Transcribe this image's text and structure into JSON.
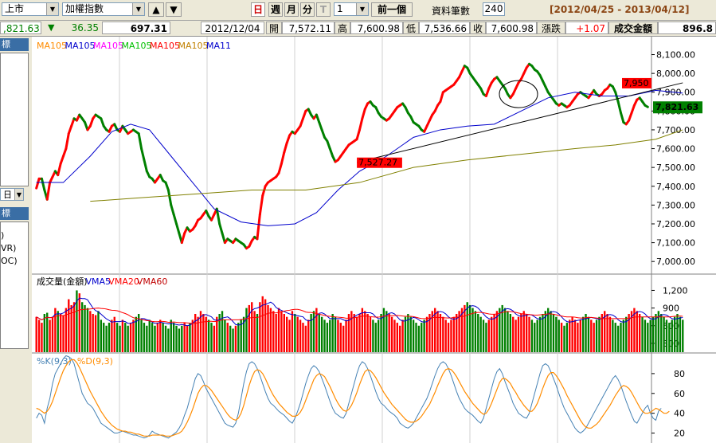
{
  "toolbar": {
    "market": "上市",
    "index": "加權指數",
    "up_arrow": "▲",
    "down_arrow": "▼",
    "day_label": "日",
    "week_label": "週",
    "month_label": "月",
    "minute_label": "分",
    "tick_label": "T",
    "multiplier": "1",
    "prev_button": "前一個",
    "records_label": "資料筆數",
    "records_value": "240",
    "date_range": "[2012/04/25 - 2013/04/12]"
  },
  "infobar": {
    "last_price": ",821.63",
    "change_arrow": "▼",
    "change": "36.35",
    "volume_value": "697.31",
    "date": "2012/12/04",
    "open_label": "開",
    "open": "7,572.11",
    "high_label": "高",
    "high": "7,600.98",
    "low_label": "低",
    "low": "7,536.66",
    "close_label": "收",
    "close": "7,600.98",
    "change_label": "漲跌",
    "day_change": "+1.07",
    "amount_label": "成交金額",
    "amount": "896.8"
  },
  "left_panel": {
    "tab1": "標",
    "select_value": "日",
    "tab2": "標",
    "items": [
      ")",
      "VR)",
      "OC)"
    ]
  },
  "colors": {
    "up": "#ff0000",
    "down": "#008000",
    "ma_short": "#0000cc",
    "ma_long": "#808000",
    "k_line": "#4682b4",
    "d_line": "#ff8c00"
  },
  "chart_data": [
    {
      "type": "line",
      "panel": "price",
      "legend": [
        {
          "text": "MA105",
          "color": "#ff8c00"
        },
        {
          "text": "MA105",
          "color": "#0000cc"
        },
        {
          "text": "MA105",
          "color": "#ff00ff"
        },
        {
          "text": "MA105",
          "color": "#00c000"
        },
        {
          "text": "MA105",
          "color": "#ff0000"
        },
        {
          "text": "MA105",
          "color": "#c08000"
        },
        {
          "text": "MA11",
          "color": "#0000cc"
        }
      ],
      "ylim": [
        6950,
        8170
      ],
      "yticks": [
        "8,100.00",
        "8,000.00",
        "7,900.00",
        "7,800.00",
        "7,700.00",
        "7,600.00",
        "7,500.00",
        "7,400.00",
        "7,300.00",
        "7,200.00",
        "7,100.00",
        "7,000.00"
      ],
      "ytick_values": [
        8100,
        8000,
        7900,
        7800,
        7700,
        7600,
        7500,
        7400,
        7300,
        7200,
        7100,
        7000
      ],
      "close": [
        7390,
        7440,
        7440,
        7380,
        7330,
        7420,
        7450,
        7480,
        7460,
        7520,
        7560,
        7600,
        7680,
        7720,
        7760,
        7750,
        7780,
        7760,
        7740,
        7700,
        7720,
        7760,
        7780,
        7770,
        7760,
        7720,
        7700,
        7690,
        7720,
        7730,
        7700,
        7690,
        7720,
        7700,
        7680,
        7690,
        7700,
        7690,
        7680,
        7600,
        7540,
        7480,
        7450,
        7440,
        7420,
        7440,
        7460,
        7430,
        7420,
        7380,
        7300,
        7250,
        7200,
        7150,
        7100,
        7150,
        7180,
        7160,
        7170,
        7190,
        7220,
        7230,
        7250,
        7270,
        7240,
        7220,
        7250,
        7280,
        7200,
        7150,
        7100,
        7120,
        7110,
        7100,
        7120,
        7110,
        7100,
        7090,
        7070,
        7080,
        7110,
        7130,
        7120,
        7250,
        7350,
        7400,
        7420,
        7430,
        7440,
        7450,
        7470,
        7520,
        7580,
        7630,
        7670,
        7690,
        7680,
        7700,
        7720,
        7760,
        7800,
        7810,
        7780,
        7760,
        7780,
        7740,
        7700,
        7660,
        7640,
        7600,
        7560,
        7530,
        7540,
        7560,
        7580,
        7600,
        7620,
        7630,
        7640,
        7650,
        7700,
        7760,
        7810,
        7840,
        7850,
        7830,
        7820,
        7790,
        7770,
        7760,
        7750,
        7760,
        7780,
        7800,
        7820,
        7830,
        7840,
        7820,
        7790,
        7770,
        7740,
        7730,
        7720,
        7700,
        7690,
        7720,
        7750,
        7780,
        7800,
        7830,
        7850,
        7900,
        7910,
        7920,
        7930,
        7940,
        7960,
        7980,
        8010,
        8040,
        8030,
        8000,
        7980,
        7960,
        7940,
        7920,
        7890,
        7880,
        7920,
        7950,
        7970,
        7980,
        7960,
        7940,
        7920,
        7890,
        7870,
        7890,
        7920,
        7950,
        7970,
        8000,
        8030,
        8050,
        8040,
        8020,
        8010,
        7990,
        7960,
        7930,
        7900,
        7880,
        7860,
        7840,
        7830,
        7840,
        7830,
        7820,
        7830,
        7850,
        7870,
        7890,
        7900,
        7890,
        7880,
        7870,
        7890,
        7910,
        7890,
        7880,
        7890,
        7910,
        7920,
        7940,
        7930,
        7900,
        7850,
        7790,
        7740,
        7730,
        7750,
        7790,
        7830,
        7860,
        7870,
        7850,
        7830,
        7821.63
      ],
      "ma_short_points": [
        [
          0,
          7420
        ],
        [
          10,
          7420
        ],
        [
          20,
          7560
        ],
        [
          28,
          7690
        ],
        [
          35,
          7730
        ],
        [
          42,
          7700
        ],
        [
          50,
          7560
        ],
        [
          58,
          7420
        ],
        [
          66,
          7280
        ],
        [
          76,
          7210
        ],
        [
          86,
          7190
        ],
        [
          96,
          7200
        ],
        [
          104,
          7260
        ],
        [
          112,
          7380
        ],
        [
          120,
          7480
        ],
        [
          130,
          7560
        ],
        [
          140,
          7660
        ],
        [
          150,
          7700
        ],
        [
          160,
          7720
        ],
        [
          170,
          7730
        ],
        [
          180,
          7800
        ],
        [
          190,
          7870
        ],
        [
          200,
          7900
        ],
        [
          210,
          7880
        ],
        [
          220,
          7880
        ],
        [
          230,
          7910
        ],
        [
          240,
          7895
        ]
      ],
      "ma_long_points": [
        [
          20,
          7320
        ],
        [
          40,
          7340
        ],
        [
          60,
          7360
        ],
        [
          80,
          7380
        ],
        [
          100,
          7380
        ],
        [
          120,
          7420
        ],
        [
          140,
          7500
        ],
        [
          160,
          7540
        ],
        [
          180,
          7570
        ],
        [
          200,
          7600
        ],
        [
          215,
          7620
        ],
        [
          230,
          7650
        ],
        [
          240,
          7700
        ]
      ],
      "trendline": {
        "from": [
          119,
          7527.27
        ],
        "to": [
          240,
          7950
        ]
      },
      "ellipse_center": [
        179,
        7890
      ],
      "annotations": [
        {
          "text": "7,527.27",
          "x": 119,
          "y": 7527.27,
          "value": 7527.27
        },
        {
          "text": "7,950",
          "x": 240,
          "y": 7950,
          "value": 7950
        }
      ],
      "last_label": "7,821.63",
      "last_value": 7821.63
    },
    {
      "type": "bar",
      "panel": "volume",
      "legend": [
        {
          "text": "成交量(金額)",
          "color": "#000000"
        },
        {
          "text": "VMA5",
          "color": "#0000cc"
        },
        {
          "text": "VMA20",
          "color": "#ff0000"
        },
        {
          "text": "VMA60",
          "color": "#c00000"
        }
      ],
      "ylim": [
        150,
        1450
      ],
      "yticks": [
        "1,200",
        "900",
        "600",
        "300"
      ],
      "ytick_values": [
        1200,
        900,
        600,
        300
      ],
      "values": [
        750,
        700,
        650,
        800,
        820,
        700,
        750,
        900,
        850,
        800,
        780,
        900,
        1050,
        950,
        1000,
        1200,
        1150,
        1000,
        950,
        900,
        850,
        800,
        780,
        850,
        700,
        650,
        600,
        650,
        700,
        750,
        650,
        600,
        700,
        650,
        600,
        650,
        700,
        750,
        800,
        700,
        650,
        600,
        700,
        650,
        600,
        650,
        700,
        650,
        600,
        550,
        700,
        650,
        600,
        550,
        600,
        650,
        600,
        650,
        700,
        800,
        750,
        850,
        800,
        750,
        700,
        650,
        600,
        750,
        800,
        850,
        700,
        650,
        600,
        550,
        600,
        650,
        700,
        750,
        900,
        950,
        1000,
        850,
        800,
        1000,
        1100,
        1050,
        950,
        900,
        850,
        800,
        900,
        850,
        800,
        750,
        700,
        850,
        800,
        750,
        700,
        650,
        600,
        700,
        800,
        850,
        900,
        800,
        750,
        700,
        650,
        700,
        800,
        750,
        700,
        650,
        600,
        700,
        800,
        850,
        800,
        750,
        800,
        900,
        850,
        800,
        750,
        700,
        650,
        700,
        800,
        900,
        850,
        800,
        750,
        700,
        650,
        600,
        700,
        750,
        800,
        750,
        700,
        650,
        600,
        650,
        700,
        750,
        800,
        850,
        900,
        850,
        800,
        750,
        700,
        650,
        700,
        750,
        800,
        850,
        900,
        950,
        1000,
        950,
        900,
        850,
        800,
        750,
        700,
        650,
        700,
        750,
        800,
        850,
        900,
        950,
        900,
        850,
        800,
        750,
        700,
        750,
        800,
        850,
        800,
        750,
        700,
        650,
        700,
        750,
        800,
        850,
        900,
        850,
        800,
        750,
        700,
        650,
        600,
        650,
        700,
        750,
        700,
        650,
        700,
        750,
        800,
        750,
        700,
        650,
        700,
        750,
        800,
        850,
        800,
        750,
        700,
        650,
        600,
        650,
        700,
        750,
        800,
        850,
        900,
        850,
        800,
        750,
        700,
        650,
        700,
        750,
        800,
        850,
        800,
        750,
        700,
        650,
        700,
        750,
        800,
        750,
        700
      ]
    },
    {
      "type": "line",
      "panel": "kd",
      "legend": [
        {
          "text": "%K(9,3)",
          "color": "#4682b4"
        },
        {
          "text": "%D(9,3)",
          "color": "#ff8c00"
        }
      ],
      "ylim": [
        10,
        100
      ],
      "yticks": [
        "80",
        "60",
        "40",
        "20"
      ],
      "ytick_values": [
        80,
        60,
        40,
        20
      ],
      "k": [
        35,
        40,
        38,
        30,
        45,
        55,
        70,
        80,
        85,
        90,
        95,
        98,
        97,
        95,
        90,
        80,
        70,
        60,
        55,
        50,
        48,
        45,
        40,
        35,
        30,
        28,
        26,
        24,
        22,
        20,
        20,
        21,
        22,
        21,
        20,
        19,
        18,
        18,
        17,
        16,
        15,
        16,
        18,
        22,
        20,
        19,
        18,
        17,
        16,
        15,
        17,
        19,
        21,
        25,
        30,
        38,
        45,
        55,
        65,
        75,
        80,
        78,
        72,
        65,
        60,
        55,
        50,
        45,
        40,
        35,
        30,
        28,
        27,
        26,
        30,
        40,
        55,
        70,
        82,
        90,
        92,
        90,
        85,
        78,
        70,
        62,
        55,
        50,
        48,
        45,
        42,
        40,
        38,
        35,
        32,
        30,
        35,
        42,
        50,
        60,
        70,
        78,
        85,
        88,
        86,
        82,
        75,
        68,
        60,
        52,
        45,
        40,
        38,
        36,
        35,
        40,
        50,
        60,
        70,
        80,
        88,
        92,
        90,
        85,
        78,
        70,
        62,
        55,
        50,
        48,
        45,
        42,
        40,
        38,
        35,
        30,
        28,
        26,
        25,
        27,
        30,
        35,
        40,
        45,
        50,
        55,
        62,
        70,
        78,
        85,
        90,
        92,
        90,
        85,
        78,
        70,
        62,
        55,
        50,
        45,
        42,
        40,
        38,
        35,
        32,
        30,
        35,
        45,
        55,
        65,
        75,
        82,
        85,
        80,
        72,
        65,
        58,
        50,
        45,
        40,
        38,
        36,
        35,
        40,
        50,
        60,
        70,
        80,
        88,
        90,
        88,
        82,
        75,
        68,
        60,
        52,
        45,
        40,
        35,
        30,
        25,
        22,
        20,
        22,
        25,
        30,
        35,
        40,
        45,
        50,
        55,
        60,
        65,
        70,
        75,
        78,
        74,
        68,
        60,
        52,
        45,
        38,
        32,
        30,
        35,
        40,
        45,
        48,
        40,
        35,
        33,
        42,
        45
      ],
      "d": [
        45,
        44,
        42,
        40,
        42,
        46,
        52,
        60,
        68,
        76,
        83,
        88,
        92,
        94,
        94,
        91,
        86,
        80,
        74,
        68,
        62,
        57,
        52,
        47,
        42,
        38,
        34,
        31,
        28,
        26,
        24,
        23,
        22,
        22,
        21,
        21,
        20,
        19,
        19,
        18,
        17,
        17,
        17,
        18,
        18,
        18,
        18,
        18,
        17,
        17,
        17,
        18,
        19,
        20,
        22,
        26,
        31,
        37,
        44,
        52,
        60,
        65,
        68,
        68,
        66,
        63,
        59,
        55,
        51,
        47,
        43,
        39,
        36,
        34,
        33,
        35,
        40,
        48,
        58,
        68,
        76,
        82,
        84,
        83,
        80,
        75,
        69,
        63,
        58,
        54,
        50,
        47,
        44,
        41,
        39,
        37,
        37,
        38,
        41,
        46,
        53,
        60,
        67,
        74,
        78,
        80,
        79,
        77,
        72,
        67,
        61,
        55,
        50,
        46,
        43,
        42,
        44,
        48,
        54,
        61,
        69,
        76,
        82,
        84,
        83,
        80,
        76,
        71,
        66,
        61,
        57,
        53,
        49,
        46,
        43,
        40,
        37,
        34,
        32,
        31,
        31,
        32,
        34,
        37,
        41,
        45,
        49,
        55,
        61,
        68,
        74,
        80,
        84,
        85,
        84,
        81,
        77,
        72,
        67,
        62,
        58,
        54,
        50,
        47,
        44,
        41,
        39,
        40,
        44,
        50,
        57,
        64,
        71,
        75,
        75,
        73,
        70,
        65,
        61,
        56,
        52,
        48,
        45,
        42,
        42,
        45,
        50,
        57,
        65,
        72,
        78,
        81,
        81,
        78,
        74,
        69,
        64,
        58,
        53,
        48,
        43,
        38,
        33,
        29,
        26,
        25,
        25,
        27,
        29,
        32,
        36,
        40,
        44,
        48,
        53,
        58,
        62,
        66,
        68,
        67,
        65,
        61,
        56,
        51,
        46,
        42,
        40,
        40,
        41,
        43,
        45,
        44,
        42,
        40,
        40,
        42
      ]
    }
  ]
}
